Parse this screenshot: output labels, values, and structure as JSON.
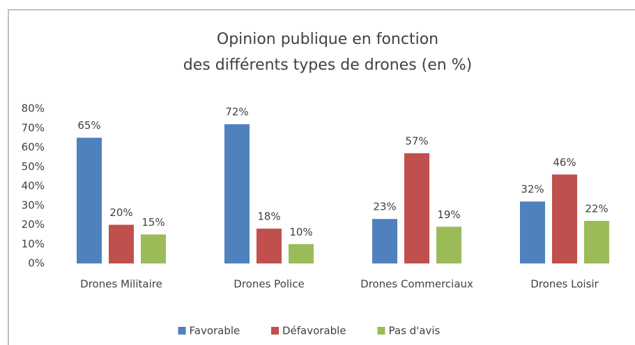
{
  "chart_data": {
    "type": "bar",
    "title": [
      "Opinion publique en fonction",
      "des différents types de drones (en %)"
    ],
    "categories": [
      "Drones Militaire",
      "Drones Police",
      "Drones Commerciaux",
      "Drones Loisir"
    ],
    "series": [
      {
        "name": "Favorable",
        "color": "#4f81bd",
        "values": [
          65,
          72,
          23,
          32
        ],
        "value_labels": [
          "65%",
          "72%",
          "23%",
          "32%"
        ]
      },
      {
        "name": "Défavorable",
        "color": "#c0504d",
        "values": [
          20,
          18,
          57,
          46
        ],
        "value_labels": [
          "20%",
          "18%",
          "57%",
          "46%"
        ]
      },
      {
        "name": "Pas d'avis",
        "color": "#9bbb59",
        "values": [
          15,
          10,
          19,
          22
        ],
        "value_labels": [
          "15%",
          "10%",
          "19%",
          "22%"
        ]
      }
    ],
    "ylim": [
      0,
      80
    ],
    "yticks": [
      {
        "value": 0,
        "label": "0%"
      },
      {
        "value": 10,
        "label": "10%"
      },
      {
        "value": 20,
        "label": "20%"
      },
      {
        "value": 30,
        "label": "30%"
      },
      {
        "value": 40,
        "label": "40%"
      },
      {
        "value": 50,
        "label": "50%"
      },
      {
        "value": 60,
        "label": "60%"
      },
      {
        "value": 70,
        "label": "70%"
      },
      {
        "value": 80,
        "label": "80%"
      }
    ],
    "legend": "bottom",
    "grid": false
  }
}
